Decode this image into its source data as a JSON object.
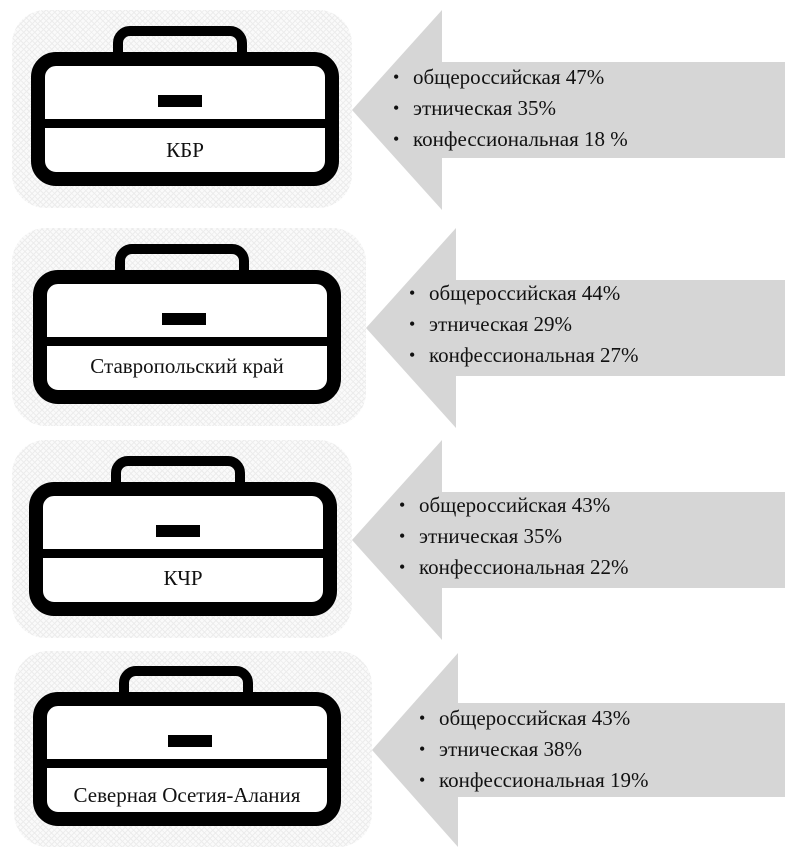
{
  "panels": [
    {
      "region": "КБР",
      "items": [
        "общероссийская 47%",
        "этническая 35%",
        "конфессиональная 18 %"
      ]
    },
    {
      "region": "Ставропольский край",
      "items": [
        "общероссийская 44%",
        "этническая 29%",
        "конфессиональная 27%"
      ]
    },
    {
      "region": "КЧР",
      "items": [
        "общероссийская 43%",
        "этническая 35%",
        "конфессиональная 22%"
      ]
    },
    {
      "region": "Северная Осетия-Алания",
      "items": [
        "общероссийская 43%",
        "этническая 38%",
        "конфессиональная 19%"
      ]
    }
  ],
  "colors": {
    "arrow": "#d6d6d6",
    "bag": "#000000",
    "card_bg": "#fafafa"
  },
  "icon": "briefcase-icon"
}
